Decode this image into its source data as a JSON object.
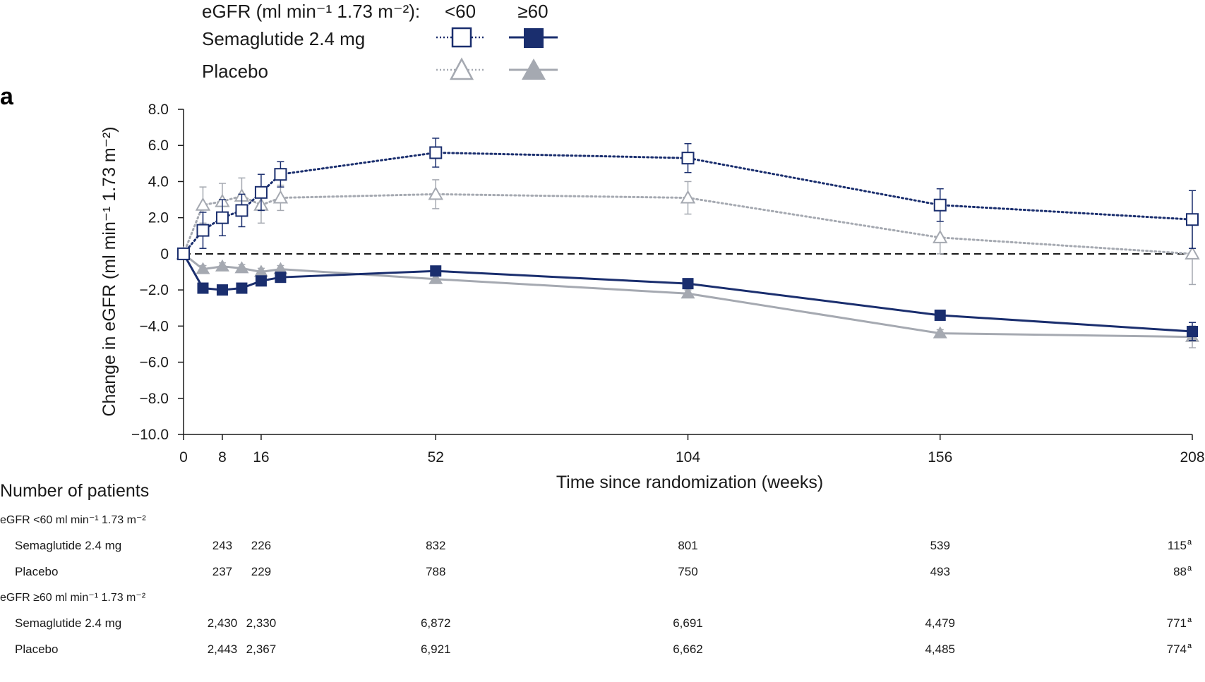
{
  "chart_data": {
    "type": "line",
    "panel_label": "a",
    "xlabel": "Time since randomization (weeks)",
    "ylabel": "Change in eGFR (ml min⁻¹ 1.73 m⁻²)",
    "xlim": [
      0,
      208
    ],
    "ylim": [
      -10,
      8
    ],
    "x_ticks": [
      0,
      8,
      16,
      52,
      104,
      156,
      208
    ],
    "y_ticks": [
      8,
      6,
      4,
      2,
      0,
      -2,
      -4,
      -6,
      -8,
      -10
    ],
    "y_tick_labels": [
      "8.0",
      "6.0",
      "4.0",
      "2.0",
      "0",
      "−2.0",
      "−4.0",
      "−6.0",
      "−8.0",
      "−10.0"
    ],
    "reference_line_y": 0,
    "legend": {
      "title": "eGFR (ml min⁻¹ 1.73 m⁻²):",
      "columns": [
        "<60",
        "≥60"
      ],
      "rows": [
        "Semaglutide 2.4 mg",
        "Placebo"
      ],
      "placement": "top-left"
    },
    "series": [
      {
        "treatment": "Semaglutide 2.4 mg",
        "egfr": "<60",
        "color": "#1a2e6e",
        "marker": "square-open",
        "line": "dotted",
        "x": [
          0,
          4,
          8,
          12,
          16,
          20,
          52,
          104,
          156,
          208
        ],
        "y": [
          0,
          1.3,
          2.0,
          2.4,
          3.4,
          4.4,
          5.6,
          5.3,
          2.7,
          1.9
        ],
        "err": [
          0,
          1.0,
          1.0,
          0.9,
          1.0,
          0.7,
          0.8,
          0.8,
          0.9,
          1.6
        ]
      },
      {
        "treatment": "Placebo",
        "egfr": "<60",
        "color": "#a5a9b1",
        "marker": "triangle-open",
        "line": "dotted",
        "x": [
          0,
          4,
          8,
          12,
          16,
          20,
          52,
          104,
          156,
          208
        ],
        "y": [
          0,
          2.7,
          2.9,
          3.2,
          2.7,
          3.1,
          3.3,
          3.1,
          0.9,
          0.0
        ],
        "err": [
          0,
          1.0,
          1.0,
          1.0,
          1.0,
          0.7,
          0.8,
          0.9,
          0.9,
          1.7
        ]
      },
      {
        "treatment": "Semaglutide 2.4 mg",
        "egfr": "≥60",
        "color": "#1a2e6e",
        "marker": "square-filled",
        "line": "solid",
        "x": [
          0,
          4,
          8,
          12,
          16,
          20,
          52,
          104,
          156,
          208
        ],
        "y": [
          0,
          -1.9,
          -2.0,
          -1.9,
          -1.5,
          -1.3,
          -0.95,
          -1.65,
          -3.4,
          -4.3
        ],
        "err": [
          0,
          0.2,
          0.2,
          0.2,
          0.2,
          0.2,
          0.2,
          0.2,
          0.2,
          0.5
        ]
      },
      {
        "treatment": "Placebo",
        "egfr": "≥60",
        "color": "#a5a9b1",
        "marker": "triangle-filled",
        "line": "solid",
        "x": [
          0,
          4,
          8,
          12,
          16,
          20,
          52,
          104,
          156,
          208
        ],
        "y": [
          0,
          -0.85,
          -0.7,
          -0.8,
          -1.0,
          -0.85,
          -1.4,
          -2.2,
          -4.4,
          -4.6
        ],
        "err": [
          0,
          0.2,
          0.2,
          0.2,
          0.2,
          0.2,
          0.2,
          0.2,
          0.2,
          0.6
        ]
      }
    ]
  },
  "patients_table": {
    "title": "Number of patients",
    "x_positions": [
      8,
      16,
      52,
      104,
      156,
      208
    ],
    "groups": [
      {
        "header": "eGFR <60 ml min⁻¹ 1.73 m⁻²",
        "rows": [
          {
            "label": "Semaglutide 2.4 mg",
            "values": [
              "243",
              "226",
              "832",
              "801",
              "539",
              "115"
            ],
            "last_sup": "a"
          },
          {
            "label": "Placebo",
            "values": [
              "237",
              "229",
              "788",
              "750",
              "493",
              "88"
            ],
            "last_sup": "a"
          }
        ]
      },
      {
        "header": "eGFR ≥60 ml min⁻¹ 1.73 m⁻²",
        "rows": [
          {
            "label": "Semaglutide 2.4 mg",
            "values": [
              "2,430",
              "2,330",
              "6,872",
              "6,691",
              "4,479",
              "771"
            ],
            "last_sup": "a"
          },
          {
            "label": "Placebo",
            "values": [
              "2,443",
              "2,367",
              "6,921",
              "6,662",
              "4,485",
              "774"
            ],
            "last_sup": "a"
          }
        ]
      }
    ]
  }
}
